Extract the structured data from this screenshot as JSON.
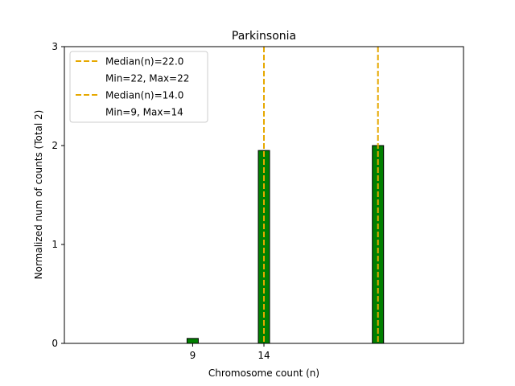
{
  "chart_data": {
    "type": "bar",
    "title": "Parkinsonia",
    "xlabel": "Chromosome count (n)",
    "ylabel": "Normalized num of counts     (Total 2)",
    "ylim": [
      0,
      3
    ],
    "xlim": [
      0,
      28
    ],
    "yticks": [
      0,
      1,
      2,
      3
    ],
    "xticks": [
      {
        "value": 9,
        "label": "9"
      },
      {
        "value": 14,
        "label": "14"
      }
    ],
    "bars": [
      {
        "x": 9,
        "value": 0.05
      },
      {
        "x": 14,
        "value": 1.95
      },
      {
        "x": 22,
        "value": 2.0
      }
    ],
    "bar_color": "#008000",
    "median_lines": [
      {
        "x": 22,
        "color": "#e6a800"
      },
      {
        "x": 14,
        "color": "#e6a800"
      }
    ],
    "legend": {
      "placement": "top-left",
      "entries": [
        {
          "label": "Median(n)=22.0",
          "sublabel": "Min=22, Max=22"
        },
        {
          "label": "Median(n)=14.0",
          "sublabel": "Min=9, Max=14"
        }
      ]
    }
  }
}
